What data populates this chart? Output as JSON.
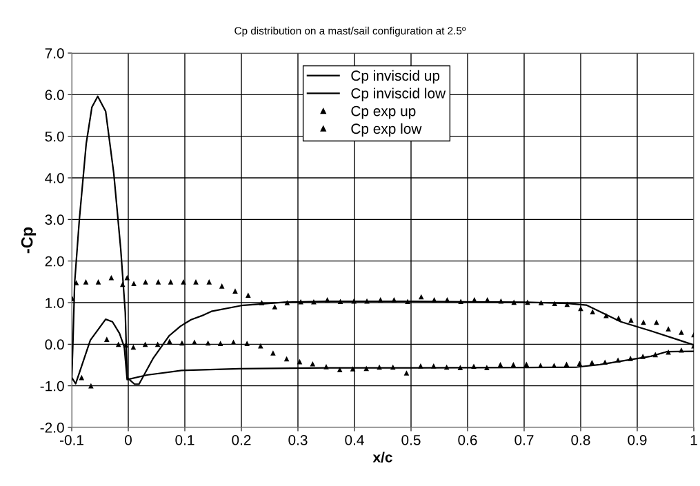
{
  "chart_data": {
    "type": "line",
    "title": "Cp distribution on a mast/sail configuration at 2.5º",
    "xlabel": "x/c",
    "ylabel": "-Cp",
    "xlim": [
      -0.1,
      1
    ],
    "ylim": [
      -2,
      7
    ],
    "xticks": [
      -0.1,
      0,
      0.1,
      0.2,
      0.3,
      0.4,
      0.5,
      0.6,
      0.7,
      0.8,
      0.9,
      1
    ],
    "yticks": [
      {
        "value": -2,
        "label": "-2.0"
      },
      {
        "value": -1,
        "label": "-1.0"
      },
      {
        "value": 0,
        "label": "0.0"
      },
      {
        "value": 1,
        "label": "1.0"
      },
      {
        "value": 2,
        "label": "2.0"
      },
      {
        "value": 3,
        "label": "3.0"
      },
      {
        "value": 4,
        "label": "4.0"
      },
      {
        "value": 5,
        "label": "5.0"
      },
      {
        "value": 6,
        "label": "6.0"
      },
      {
        "value": 7,
        "label": "7.0"
      }
    ],
    "grid": true,
    "legend": "top center",
    "series": [
      {
        "name": "Cp inviscid up",
        "color": "#000000",
        "marker": "none",
        "line_style": "solid",
        "x": [
          -0.1,
          -0.0975,
          -0.0948,
          -0.0866,
          -0.0744,
          -0.0643,
          -0.054,
          -0.04,
          -0.0256,
          -0.0134,
          -0.0053,
          -0.002,
          0.011,
          0.019,
          0.0435,
          0.072,
          0.092,
          0.111,
          0.133,
          0.147,
          0.2,
          0.277,
          0.35,
          0.5,
          0.6,
          0.7,
          0.777,
          0.81,
          0.871,
          0.924,
          0.976,
          1.0
        ],
        "values": [
          -0.85,
          0.2,
          1.48,
          2.98,
          4.82,
          5.7,
          5.96,
          5.6,
          4.1,
          2.3,
          0.76,
          -0.8,
          -0.96,
          -0.96,
          -0.35,
          0.2,
          0.43,
          0.59,
          0.7,
          0.79,
          0.93,
          1.01,
          1.03,
          1.03,
          1.02,
          1.01,
          0.98,
          0.94,
          0.54,
          0.32,
          0.09,
          -0.02
        ]
      },
      {
        "name": "Cp inviscid low",
        "color": "#000000",
        "marker": "none",
        "line_style": "solid",
        "x": [
          -0.1,
          -0.093,
          -0.067,
          -0.04,
          -0.028,
          -0.0155,
          -0.007,
          -0.002,
          0.033,
          0.094,
          0.196,
          0.35,
          0.5,
          0.7,
          0.793,
          0.834,
          0.875,
          0.924,
          0.952,
          1.0
        ],
        "values": [
          -0.8,
          -0.95,
          0.1,
          0.6,
          0.54,
          0.26,
          -0.07,
          -0.85,
          -0.74,
          -0.63,
          -0.59,
          -0.57,
          -0.57,
          -0.56,
          -0.55,
          -0.49,
          -0.4,
          -0.29,
          -0.18,
          -0.17
        ]
      },
      {
        "name": "Cp exp up",
        "type": "scatter",
        "color": "#000000",
        "marker": "triangle",
        "x": [
          -0.099,
          -0.092,
          -0.075,
          -0.053,
          -0.03,
          -0.01,
          -0.002,
          0.0098,
          0.0305,
          0.053,
          0.075,
          0.0976,
          0.1195,
          0.143,
          0.1655,
          0.189,
          0.212,
          0.236,
          0.259,
          0.281,
          0.305,
          0.328,
          0.352,
          0.375,
          0.399,
          0.422,
          0.446,
          0.47,
          0.494,
          0.518,
          0.541,
          0.564,
          0.588,
          0.612,
          0.635,
          0.659,
          0.682,
          0.706,
          0.73,
          0.754,
          0.776,
          0.8,
          0.821,
          0.845,
          0.867,
          0.889,
          0.911,
          0.934,
          0.955,
          0.978,
          1.0
        ],
        "values": [
          1.1,
          1.48,
          1.5,
          1.5,
          1.6,
          1.44,
          1.6,
          1.46,
          1.5,
          1.5,
          1.5,
          1.5,
          1.5,
          1.5,
          1.4,
          1.28,
          1.18,
          1.0,
          0.9,
          1.0,
          1.02,
          1.02,
          1.07,
          1.03,
          1.04,
          1.04,
          1.07,
          1.07,
          1.03,
          1.14,
          1.07,
          1.07,
          1.03,
          1.07,
          1.07,
          1.04,
          1.01,
          1.01,
          1.0,
          0.98,
          0.96,
          0.86,
          0.78,
          0.69,
          0.63,
          0.58,
          0.53,
          0.53,
          0.37,
          0.29,
          0.23
        ]
      },
      {
        "name": "Cp exp low",
        "type": "scatter",
        "color": "#000000",
        "marker": "triangle",
        "x": [
          -0.0826,
          -0.066,
          -0.038,
          -0.0174,
          -0.0045,
          0.009,
          0.03,
          0.052,
          0.073,
          0.095,
          0.117,
          0.141,
          0.163,
          0.186,
          0.21,
          0.234,
          0.256,
          0.28,
          0.303,
          0.326,
          0.35,
          0.374,
          0.397,
          0.421,
          0.444,
          0.468,
          0.492,
          0.517,
          0.54,
          0.563,
          0.587,
          0.611,
          0.634,
          0.658,
          0.681,
          0.704,
          0.729,
          0.753,
          0.775,
          0.798,
          0.82,
          0.843,
          0.866,
          0.888,
          0.91,
          0.932,
          0.955,
          0.978,
          1.0
        ],
        "values": [
          -0.8,
          -1.0,
          0.12,
          0.0,
          -0.02,
          -0.07,
          0.0,
          0.0,
          0.07,
          0.03,
          0.05,
          0.03,
          0.02,
          0.05,
          0.02,
          -0.04,
          -0.21,
          -0.35,
          -0.42,
          -0.47,
          -0.54,
          -0.61,
          -0.59,
          -0.58,
          -0.55,
          -0.55,
          -0.69,
          -0.52,
          -0.52,
          -0.55,
          -0.56,
          -0.53,
          -0.56,
          -0.49,
          -0.49,
          -0.48,
          -0.51,
          -0.51,
          -0.48,
          -0.46,
          -0.44,
          -0.43,
          -0.38,
          -0.34,
          -0.29,
          -0.25,
          -0.19,
          -0.14,
          -0.04
        ]
      }
    ]
  }
}
